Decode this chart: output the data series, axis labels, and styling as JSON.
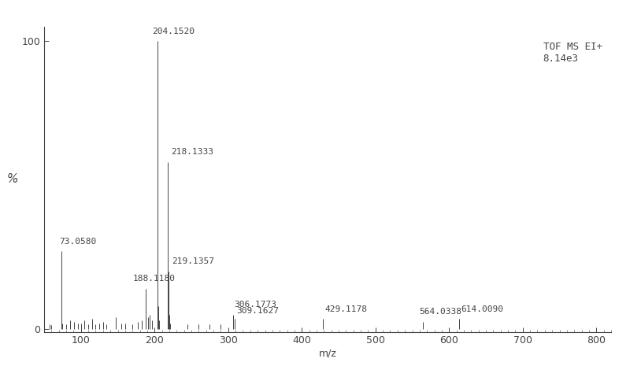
{
  "peaks": [
    {
      "mz": 57.0,
      "intensity": 1.5,
      "label": ""
    },
    {
      "mz": 60.0,
      "intensity": 1.2,
      "label": ""
    },
    {
      "mz": 73.058,
      "intensity": 27,
      "label": "73.0580"
    },
    {
      "mz": 75.0,
      "intensity": 2,
      "label": ""
    },
    {
      "mz": 80.0,
      "intensity": 1.5,
      "label": ""
    },
    {
      "mz": 85.0,
      "intensity": 3,
      "label": ""
    },
    {
      "mz": 91.0,
      "intensity": 2.5,
      "label": ""
    },
    {
      "mz": 96.0,
      "intensity": 2,
      "label": ""
    },
    {
      "mz": 100.0,
      "intensity": 2,
      "label": ""
    },
    {
      "mz": 105.0,
      "intensity": 3,
      "label": ""
    },
    {
      "mz": 110.0,
      "intensity": 1.5,
      "label": ""
    },
    {
      "mz": 115.0,
      "intensity": 3.5,
      "label": ""
    },
    {
      "mz": 120.0,
      "intensity": 1.5,
      "label": ""
    },
    {
      "mz": 125.0,
      "intensity": 2,
      "label": ""
    },
    {
      "mz": 130.0,
      "intensity": 2.5,
      "label": ""
    },
    {
      "mz": 135.0,
      "intensity": 1.5,
      "label": ""
    },
    {
      "mz": 147.0,
      "intensity": 4,
      "label": ""
    },
    {
      "mz": 155.0,
      "intensity": 2,
      "label": ""
    },
    {
      "mz": 160.0,
      "intensity": 2,
      "label": ""
    },
    {
      "mz": 170.0,
      "intensity": 1.5,
      "label": ""
    },
    {
      "mz": 177.0,
      "intensity": 2.5,
      "label": ""
    },
    {
      "mz": 183.0,
      "intensity": 3,
      "label": ""
    },
    {
      "mz": 188.118,
      "intensity": 14,
      "label": "188.1180"
    },
    {
      "mz": 191.0,
      "intensity": 4,
      "label": ""
    },
    {
      "mz": 193.0,
      "intensity": 5,
      "label": ""
    },
    {
      "mz": 196.0,
      "intensity": 3,
      "label": ""
    },
    {
      "mz": 204.152,
      "intensity": 100,
      "label": "204.1520"
    },
    {
      "mz": 205.0,
      "intensity": 8,
      "label": ""
    },
    {
      "mz": 206.0,
      "intensity": 3,
      "label": ""
    },
    {
      "mz": 218.1333,
      "intensity": 58,
      "label": "218.1333"
    },
    {
      "mz": 219.1357,
      "intensity": 20,
      "label": "219.1357"
    },
    {
      "mz": 220.0,
      "intensity": 5,
      "label": ""
    },
    {
      "mz": 221.0,
      "intensity": 2,
      "label": ""
    },
    {
      "mz": 245.0,
      "intensity": 1.5,
      "label": ""
    },
    {
      "mz": 260.0,
      "intensity": 1.5,
      "label": ""
    },
    {
      "mz": 275.0,
      "intensity": 1.5,
      "label": ""
    },
    {
      "mz": 290.0,
      "intensity": 1.5,
      "label": ""
    },
    {
      "mz": 306.1773,
      "intensity": 5,
      "label": "306.1773"
    },
    {
      "mz": 309.1627,
      "intensity": 3.5,
      "label": "309.1627"
    },
    {
      "mz": 429.1178,
      "intensity": 3.5,
      "label": "429.1178"
    },
    {
      "mz": 564.0338,
      "intensity": 2.5,
      "label": "564.0338"
    },
    {
      "mz": 614.009,
      "intensity": 3.5,
      "label": "614.0090"
    }
  ],
  "xmin": 50,
  "xmax": 820,
  "ymin": 0,
  "ymax": 100,
  "xlabel": "m/z",
  "ylabel": "%",
  "xticks": [
    100,
    200,
    300,
    400,
    500,
    600,
    700,
    800
  ],
  "annotation_text": "TOF MS EI+\n8.14e3",
  "line_color": "#444444",
  "background_color": "#ffffff",
  "font_size_peaks": 8,
  "font_size_annotation": 9,
  "font_size_axis": 9
}
